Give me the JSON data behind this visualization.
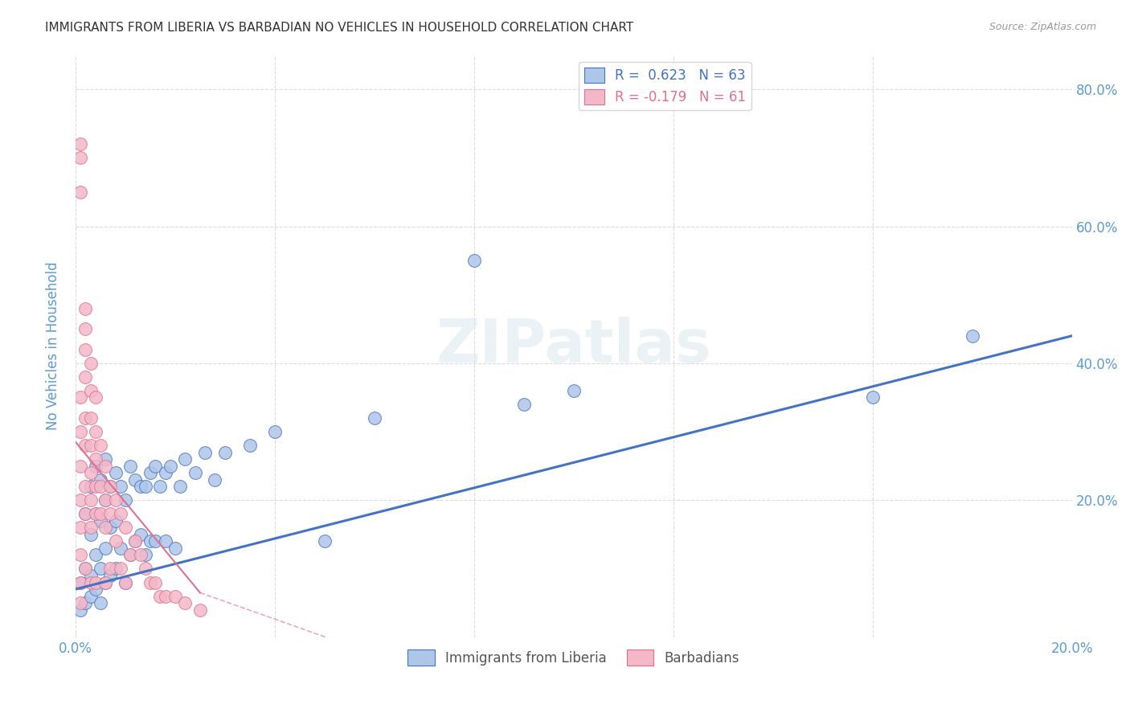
{
  "title": "IMMIGRANTS FROM LIBERIA VS BARBADIAN NO VEHICLES IN HOUSEHOLD CORRELATION CHART",
  "source": "Source: ZipAtlas.com",
  "ylabel": "No Vehicles in Household",
  "xlim": [
    0.0,
    0.2
  ],
  "ylim": [
    0.0,
    0.85
  ],
  "xticks": [
    0.0,
    0.04,
    0.08,
    0.12,
    0.16,
    0.2
  ],
  "yticks": [
    0.0,
    0.2,
    0.4,
    0.6,
    0.8
  ],
  "right_ytick_labels": [
    "20.0%",
    "40.0%",
    "60.0%",
    "80.0%"
  ],
  "right_yticks": [
    0.2,
    0.4,
    0.6,
    0.8
  ],
  "blue_r": "0.623",
  "blue_n": "63",
  "pink_r": "-0.179",
  "pink_n": "61",
  "blue_color": "#aec6e8",
  "pink_color": "#f4b8c8",
  "blue_line_color": "#4472c4",
  "pink_line_color": "#e07090",
  "watermark": "ZIPatlas",
  "blue_x": [
    0.001,
    0.001,
    0.002,
    0.002,
    0.002,
    0.003,
    0.003,
    0.003,
    0.003,
    0.004,
    0.004,
    0.004,
    0.004,
    0.005,
    0.005,
    0.005,
    0.005,
    0.006,
    0.006,
    0.006,
    0.006,
    0.007,
    0.007,
    0.007,
    0.008,
    0.008,
    0.008,
    0.009,
    0.009,
    0.01,
    0.01,
    0.011,
    0.011,
    0.012,
    0.012,
    0.013,
    0.013,
    0.014,
    0.014,
    0.015,
    0.015,
    0.016,
    0.016,
    0.017,
    0.018,
    0.018,
    0.019,
    0.02,
    0.021,
    0.022,
    0.024,
    0.026,
    0.028,
    0.03,
    0.035,
    0.04,
    0.05,
    0.06,
    0.08,
    0.09,
    0.1,
    0.16,
    0.18
  ],
  "blue_y": [
    0.04,
    0.08,
    0.05,
    0.1,
    0.18,
    0.06,
    0.09,
    0.15,
    0.22,
    0.07,
    0.12,
    0.18,
    0.25,
    0.05,
    0.1,
    0.17,
    0.23,
    0.08,
    0.13,
    0.2,
    0.26,
    0.09,
    0.16,
    0.22,
    0.1,
    0.17,
    0.24,
    0.13,
    0.22,
    0.08,
    0.2,
    0.12,
    0.25,
    0.14,
    0.23,
    0.15,
    0.22,
    0.12,
    0.22,
    0.14,
    0.24,
    0.14,
    0.25,
    0.22,
    0.14,
    0.24,
    0.25,
    0.13,
    0.22,
    0.26,
    0.24,
    0.27,
    0.23,
    0.27,
    0.28,
    0.3,
    0.14,
    0.32,
    0.55,
    0.34,
    0.36,
    0.35,
    0.44
  ],
  "pink_x": [
    0.001,
    0.001,
    0.001,
    0.001,
    0.001,
    0.001,
    0.001,
    0.001,
    0.001,
    0.001,
    0.001,
    0.002,
    0.002,
    0.002,
    0.002,
    0.002,
    0.002,
    0.002,
    0.002,
    0.002,
    0.003,
    0.003,
    0.003,
    0.003,
    0.003,
    0.003,
    0.003,
    0.003,
    0.004,
    0.004,
    0.004,
    0.004,
    0.004,
    0.004,
    0.005,
    0.005,
    0.005,
    0.006,
    0.006,
    0.006,
    0.006,
    0.007,
    0.007,
    0.007,
    0.008,
    0.008,
    0.009,
    0.009,
    0.01,
    0.01,
    0.011,
    0.012,
    0.013,
    0.014,
    0.015,
    0.016,
    0.017,
    0.018,
    0.02,
    0.022,
    0.025
  ],
  "pink_y": [
    0.72,
    0.7,
    0.65,
    0.05,
    0.08,
    0.12,
    0.16,
    0.2,
    0.25,
    0.3,
    0.35,
    0.45,
    0.48,
    0.42,
    0.38,
    0.32,
    0.28,
    0.22,
    0.18,
    0.1,
    0.4,
    0.36,
    0.32,
    0.28,
    0.24,
    0.2,
    0.16,
    0.08,
    0.35,
    0.3,
    0.26,
    0.22,
    0.18,
    0.08,
    0.28,
    0.22,
    0.18,
    0.25,
    0.2,
    0.16,
    0.08,
    0.22,
    0.18,
    0.1,
    0.2,
    0.14,
    0.18,
    0.1,
    0.16,
    0.08,
    0.12,
    0.14,
    0.12,
    0.1,
    0.08,
    0.08,
    0.06,
    0.06,
    0.06,
    0.05,
    0.04
  ],
  "background_color": "#ffffff",
  "grid_color": "#cccccc",
  "title_color": "#333333",
  "tick_label_color": "#5b9bd5"
}
